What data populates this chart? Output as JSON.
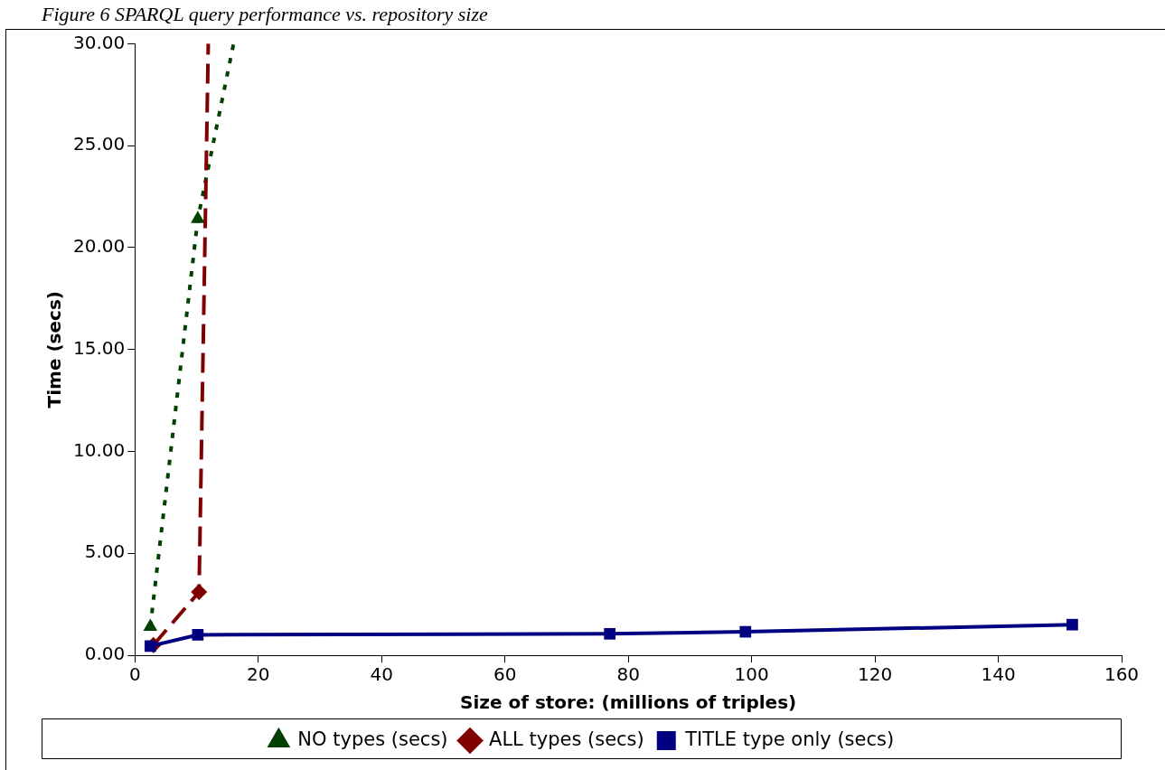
{
  "chart_data": {
    "type": "line",
    "title": "Figure 6 SPARQL query performance vs. repository size",
    "xlabel": "Size of store: (millions of triples)",
    "ylabel": "Time (secs)",
    "series": [
      {
        "name": "NO types (secs)",
        "color": "#004000",
        "marker": "triangle",
        "line_style": "dotted",
        "x": [
          2.5,
          10.2,
          16
        ],
        "values": [
          1.4,
          21.4,
          30
        ]
      },
      {
        "name": "ALL types (secs)",
        "color": "#800000",
        "marker": "diamond",
        "line_style": "dashed",
        "x": [
          3,
          10.4,
          11.9
        ],
        "values": [
          0.5,
          3.1,
          30
        ]
      },
      {
        "name": "TITLE type only (secs)",
        "color": "#000080",
        "marker": "square",
        "line_style": "solid",
        "x": [
          2.5,
          10.2,
          77,
          99,
          152
        ],
        "values": [
          0.45,
          1.0,
          1.05,
          1.15,
          1.5
        ]
      }
    ],
    "xlim": [
      0,
      160
    ],
    "xticks": [
      0,
      20,
      40,
      60,
      80,
      100,
      120,
      140,
      160
    ],
    "ylim": [
      0,
      30
    ],
    "yticks": [
      {
        "value": 0,
        "label": "0.00"
      },
      {
        "value": 5,
        "label": "5.00"
      },
      {
        "value": 10,
        "label": "10.00"
      },
      {
        "value": 15,
        "label": "15.00"
      },
      {
        "value": 20,
        "label": "20.00"
      },
      {
        "value": 25,
        "label": "25.00"
      },
      {
        "value": 30,
        "label": "30.00"
      }
    ],
    "grid": false,
    "legend": "bottom"
  }
}
